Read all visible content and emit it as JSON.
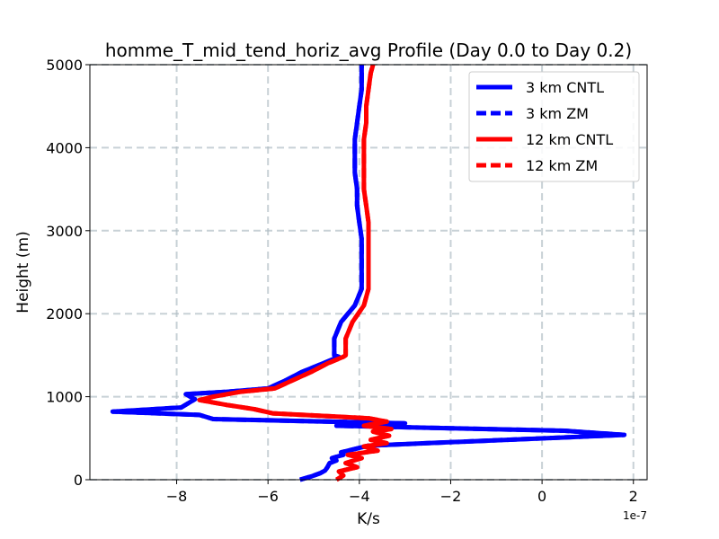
{
  "chart_data": {
    "type": "line",
    "title": "homme_T_mid_tend_horiz_avg Profile (Day 0.0 to Day 0.2)",
    "xlabel": "K/s",
    "ylabel": "Height (m)",
    "x_offset_label": "1e-7",
    "xlim": [
      -9.9e-07,
      2.3e-07
    ],
    "ylim": [
      0,
      5000
    ],
    "xticks": [
      {
        "value": -8e-07,
        "label": "−8"
      },
      {
        "value": -6e-07,
        "label": "−6"
      },
      {
        "value": -4e-07,
        "label": "−4"
      },
      {
        "value": -2e-07,
        "label": "−2"
      },
      {
        "value": 0,
        "label": "0"
      },
      {
        "value": 2e-07,
        "label": "2"
      }
    ],
    "yticks": [
      {
        "value": 0,
        "label": "0"
      },
      {
        "value": 1000,
        "label": "1000"
      },
      {
        "value": 2000,
        "label": "2000"
      },
      {
        "value": 3000,
        "label": "3000"
      },
      {
        "value": 4000,
        "label": "4000"
      },
      {
        "value": 5000,
        "label": "5000"
      }
    ],
    "grid": true,
    "legend_position": "top-right",
    "series": [
      {
        "name": "3 km CNTL",
        "color": "#0000ff",
        "dash": "solid",
        "points": [
          [
            -5.3e-07,
            0
          ],
          [
            -5.05e-07,
            40
          ],
          [
            -4.85e-07,
            80
          ],
          [
            -4.75e-07,
            110
          ],
          [
            -4.7e-07,
            150
          ],
          [
            -4.65e-07,
            200
          ],
          [
            -4.5e-07,
            230
          ],
          [
            -4.6e-07,
            260
          ],
          [
            -4.35e-07,
            300
          ],
          [
            -4.4e-07,
            330
          ],
          [
            -4.1e-07,
            370
          ],
          [
            -3.8e-07,
            410
          ],
          [
            -2.5e-07,
            440
          ],
          [
            1.8e-07,
            540
          ],
          [
            5e-08,
            590
          ],
          [
            -2e-07,
            620
          ],
          [
            -4.5e-07,
            650
          ],
          [
            -3e-07,
            680
          ],
          [
            -7.2e-07,
            730
          ],
          [
            -7.5e-07,
            780
          ],
          [
            -9.4e-07,
            820
          ],
          [
            -7.9e-07,
            870
          ],
          [
            -7.6e-07,
            970
          ],
          [
            -7.8e-07,
            1030
          ],
          [
            -6.9e-07,
            1060
          ],
          [
            -6e-07,
            1100
          ],
          [
            -5.6e-07,
            1200
          ],
          [
            -5.25e-07,
            1300
          ],
          [
            -4.8e-07,
            1400
          ],
          [
            -4.45e-07,
            1480
          ],
          [
            -4.55e-07,
            1500
          ],
          [
            -4.55e-07,
            1700
          ],
          [
            -4.4e-07,
            1900
          ],
          [
            -4.1e-07,
            2100
          ],
          [
            -3.95e-07,
            2300
          ],
          [
            -3.95e-07,
            2500
          ],
          [
            -3.95e-07,
            2700
          ],
          [
            -3.95e-07,
            2900
          ],
          [
            -4e-07,
            3100
          ],
          [
            -4.05e-07,
            3300
          ],
          [
            -4.05e-07,
            3500
          ],
          [
            -4.1e-07,
            3700
          ],
          [
            -4.1e-07,
            3900
          ],
          [
            -4.1e-07,
            4100
          ],
          [
            -4.05e-07,
            4300
          ],
          [
            -4e-07,
            4500
          ],
          [
            -3.95e-07,
            4700
          ],
          [
            -3.95e-07,
            4900
          ],
          [
            -3.95e-07,
            5000
          ]
        ]
      },
      {
        "name": "3 km ZM",
        "color": "#0000ff",
        "dash": "dashed",
        "points": [
          [
            -5.3e-07,
            0
          ],
          [
            -5.05e-07,
            40
          ],
          [
            -4.85e-07,
            80
          ],
          [
            -4.75e-07,
            110
          ],
          [
            -4.7e-07,
            150
          ],
          [
            -4.65e-07,
            200
          ],
          [
            -4.5e-07,
            230
          ],
          [
            -4.6e-07,
            260
          ],
          [
            -4.35e-07,
            300
          ],
          [
            -4.4e-07,
            330
          ],
          [
            -4.1e-07,
            370
          ],
          [
            -3.8e-07,
            410
          ],
          [
            -2.5e-07,
            440
          ],
          [
            1.8e-07,
            540
          ],
          [
            5e-08,
            590
          ],
          [
            -2e-07,
            620
          ],
          [
            -4.5e-07,
            650
          ],
          [
            -3e-07,
            680
          ],
          [
            -7.2e-07,
            730
          ],
          [
            -7.5e-07,
            780
          ],
          [
            -9.4e-07,
            820
          ],
          [
            -7.9e-07,
            870
          ],
          [
            -7.6e-07,
            970
          ],
          [
            -7.8e-07,
            1030
          ],
          [
            -6.9e-07,
            1060
          ],
          [
            -6e-07,
            1100
          ],
          [
            -5.6e-07,
            1200
          ],
          [
            -5.25e-07,
            1300
          ],
          [
            -4.8e-07,
            1400
          ],
          [
            -4.45e-07,
            1480
          ],
          [
            -4.55e-07,
            1500
          ],
          [
            -4.55e-07,
            1700
          ],
          [
            -4.4e-07,
            1900
          ],
          [
            -4.1e-07,
            2100
          ],
          [
            -3.95e-07,
            2300
          ],
          [
            -3.95e-07,
            2500
          ],
          [
            -3.95e-07,
            2700
          ],
          [
            -3.95e-07,
            2900
          ],
          [
            -4e-07,
            3100
          ],
          [
            -4.05e-07,
            3300
          ],
          [
            -4.05e-07,
            3500
          ],
          [
            -4.1e-07,
            3700
          ],
          [
            -4.1e-07,
            3900
          ],
          [
            -4.1e-07,
            4100
          ],
          [
            -4.05e-07,
            4300
          ],
          [
            -4e-07,
            4500
          ],
          [
            -3.95e-07,
            4700
          ],
          [
            -3.95e-07,
            4900
          ],
          [
            -3.95e-07,
            5000
          ]
        ]
      },
      {
        "name": "12 km CNTL",
        "color": "#ff0000",
        "dash": "solid",
        "points": [
          [
            -4.5e-07,
            0
          ],
          [
            -4.35e-07,
            50
          ],
          [
            -4.45e-07,
            100
          ],
          [
            -4.05e-07,
            150
          ],
          [
            -4.3e-07,
            200
          ],
          [
            -3.95e-07,
            260
          ],
          [
            -4.25e-07,
            300
          ],
          [
            -3.6e-07,
            350
          ],
          [
            -3.9e-07,
            400
          ],
          [
            -3.4e-07,
            440
          ],
          [
            -3.75e-07,
            480
          ],
          [
            -3.35e-07,
            530
          ],
          [
            -3.7e-07,
            580
          ],
          [
            -3.3e-07,
            610
          ],
          [
            -3.9e-07,
            650
          ],
          [
            -3.4e-07,
            700
          ],
          [
            -3.8e-07,
            740
          ],
          [
            -5.9e-07,
            800
          ],
          [
            -6.3e-07,
            850
          ],
          [
            -6.9e-07,
            900
          ],
          [
            -7.5e-07,
            960
          ],
          [
            -7.2e-07,
            1000
          ],
          [
            -6.6e-07,
            1060
          ],
          [
            -5.85e-07,
            1100
          ],
          [
            -5.45e-07,
            1200
          ],
          [
            -5.05e-07,
            1300
          ],
          [
            -4.7e-07,
            1400
          ],
          [
            -4.35e-07,
            1480
          ],
          [
            -4.3e-07,
            1500
          ],
          [
            -4.3e-07,
            1700
          ],
          [
            -4.15e-07,
            1900
          ],
          [
            -3.9e-07,
            2100
          ],
          [
            -3.8e-07,
            2300
          ],
          [
            -3.8e-07,
            2500
          ],
          [
            -3.8e-07,
            2700
          ],
          [
            -3.8e-07,
            2900
          ],
          [
            -3.8e-07,
            3100
          ],
          [
            -3.85e-07,
            3300
          ],
          [
            -3.9e-07,
            3500
          ],
          [
            -3.9e-07,
            3700
          ],
          [
            -3.9e-07,
            3900
          ],
          [
            -3.9e-07,
            4100
          ],
          [
            -3.85e-07,
            4300
          ],
          [
            -3.85e-07,
            4500
          ],
          [
            -3.8e-07,
            4700
          ],
          [
            -3.75e-07,
            4900
          ],
          [
            -3.7e-07,
            5000
          ]
        ]
      },
      {
        "name": "12 km ZM",
        "color": "#ff0000",
        "dash": "dashed",
        "points": [
          [
            -4.5e-07,
            0
          ],
          [
            -4.35e-07,
            50
          ],
          [
            -4.45e-07,
            100
          ],
          [
            -4.05e-07,
            150
          ],
          [
            -4.3e-07,
            200
          ],
          [
            -3.95e-07,
            260
          ],
          [
            -4.25e-07,
            300
          ],
          [
            -3.6e-07,
            350
          ],
          [
            -3.9e-07,
            400
          ],
          [
            -3.4e-07,
            440
          ],
          [
            -3.75e-07,
            480
          ],
          [
            -3.35e-07,
            530
          ],
          [
            -3.7e-07,
            580
          ],
          [
            -3.3e-07,
            610
          ],
          [
            -3.9e-07,
            650
          ],
          [
            -3.4e-07,
            700
          ],
          [
            -3.8e-07,
            740
          ],
          [
            -5.9e-07,
            800
          ],
          [
            -6.3e-07,
            850
          ],
          [
            -6.9e-07,
            900
          ],
          [
            -7.5e-07,
            960
          ],
          [
            -7.2e-07,
            1000
          ],
          [
            -6.6e-07,
            1060
          ],
          [
            -5.85e-07,
            1100
          ],
          [
            -5.45e-07,
            1200
          ],
          [
            -5.05e-07,
            1300
          ],
          [
            -4.7e-07,
            1400
          ],
          [
            -4.35e-07,
            1480
          ],
          [
            -4.3e-07,
            1500
          ],
          [
            -4.3e-07,
            1700
          ],
          [
            -4.15e-07,
            1900
          ],
          [
            -3.9e-07,
            2100
          ],
          [
            -3.8e-07,
            2300
          ],
          [
            -3.8e-07,
            2500
          ],
          [
            -3.8e-07,
            2700
          ],
          [
            -3.8e-07,
            2900
          ],
          [
            -3.8e-07,
            3100
          ],
          [
            -3.85e-07,
            3300
          ],
          [
            -3.9e-07,
            3500
          ],
          [
            -3.9e-07,
            3700
          ],
          [
            -3.9e-07,
            3900
          ],
          [
            -3.9e-07,
            4100
          ],
          [
            -3.85e-07,
            4300
          ],
          [
            -3.85e-07,
            4500
          ],
          [
            -3.8e-07,
            4700
          ],
          [
            -3.75e-07,
            4900
          ],
          [
            -3.7e-07,
            5000
          ]
        ]
      }
    ]
  }
}
